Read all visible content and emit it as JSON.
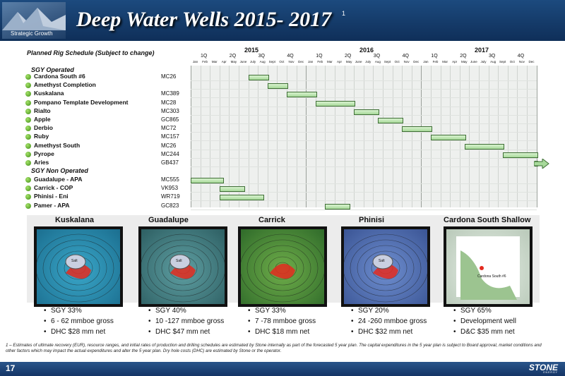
{
  "header": {
    "title": "Deep Water Wells 2015- 2017",
    "title_sup": "1",
    "logo_text": "Strategic Growth"
  },
  "schedule": {
    "title": "Planned Rig Schedule (Subject to change)",
    "years": [
      "2015",
      "2016",
      "2017"
    ],
    "quarters": [
      "1Q",
      "2Q",
      "3Q",
      "4Q",
      "1Q",
      "2Q",
      "3Q",
      "4Q",
      "1Q",
      "2Q",
      "3Q",
      "4Q"
    ],
    "months": [
      "Jan",
      "Feb",
      "Mar",
      "Apr",
      "May",
      "June",
      "July",
      "Aug",
      "Sept",
      "Oct",
      "Nov",
      "Dec",
      "Jan",
      "Feb",
      "Mar",
      "Apr",
      "May",
      "June",
      "July",
      "Aug",
      "Sept",
      "Oct",
      "Nov",
      "Dec",
      "Jan",
      "Feb",
      "Mar",
      "Apr",
      "May",
      "June",
      "July",
      "Aug",
      "Sept",
      "Oct",
      "Nov",
      "Dec"
    ],
    "operated_label": "SGY Operated",
    "non_operated_label": "SGY Non Operated",
    "operated": [
      {
        "name": "Cardona South #6",
        "block": "MC26",
        "start": 6,
        "end": 8
      },
      {
        "name": "Amethyst Completion",
        "block": "",
        "start": 8,
        "end": 10
      },
      {
        "name": "Kuskalana",
        "block": "MC389",
        "start": 10,
        "end": 13
      },
      {
        "name": "Pompano Template Development",
        "block": "MC28",
        "start": 13,
        "end": 17
      },
      {
        "name": "Rialto",
        "block": "MC303",
        "start": 17,
        "end": 19.5
      },
      {
        "name": "Apple",
        "block": "GC865",
        "start": 19.5,
        "end": 22
      },
      {
        "name": "Derbio",
        "block": "MC72",
        "start": 22,
        "end": 25
      },
      {
        "name": "Ruby",
        "block": "MC157",
        "start": 25,
        "end": 28.5
      },
      {
        "name": "Amethyst South",
        "block": "MC26",
        "start": 28.5,
        "end": 32.5
      },
      {
        "name": "Pyrope",
        "block": "MC244",
        "start": 32.5,
        "end": 36
      },
      {
        "name": "Aries",
        "block": "GB437",
        "start": 35.8,
        "end": 37.3
      }
    ],
    "non_operated": [
      {
        "name": "Guadalupe - APA",
        "block": "MC555",
        "start": 0,
        "end": 3.3
      },
      {
        "name": "Carrick - COP",
        "block": "VK953",
        "start": 3,
        "end": 5.5
      },
      {
        "name": "Phinisi - Eni",
        "block": "WR719",
        "start": 3,
        "end": 7.5
      },
      {
        "name": "Pamer - APA",
        "block": "GC823",
        "start": 14,
        "end": 16.5
      }
    ]
  },
  "prospects": [
    {
      "name": "Kuskalana",
      "bullets": [
        "SGY 33%",
        "6 - 62 mmboe gross",
        "DHC $28 mm net"
      ],
      "label": "Salt"
    },
    {
      "name": "Guadalupe",
      "bullets": [
        "SGY 40%",
        "10 -127 mmboe gross",
        "DHC $47 mm net"
      ],
      "label": "Salt"
    },
    {
      "name": "Carrick",
      "bullets": [
        "SGY 33%",
        "7 -78 mmboe gross",
        "DHC $18 mm net"
      ],
      "label": ""
    },
    {
      "name": "Phinisi",
      "bullets": [
        "SGY 20%",
        "24 -260 mmboe gross",
        "DHC $32 mm net"
      ],
      "label": "Salt"
    },
    {
      "name": "Cardona South Shallow",
      "bullets": [
        "SGY  65%",
        "Development well",
        "D&C  $35 mm net"
      ],
      "label": "Cardona South #6"
    }
  ],
  "footnote": "1 – Estimates of ultimate recovery (EUR), resource ranges, and initial rates of production and drilling schedules are estimated by Stone internally as part of the forecasted 5 year plan. The capital expenditures in the 5 year plan is subject to Board approval, market conditions and other factors which may impact the actual expenditures and alter the 5 year plan. Dry hole costs (DHC) are estimated by Stone or the operator.",
  "footer": {
    "page": "17",
    "brand": "STONE",
    "brand_sub": "ENERGY"
  },
  "colors": {
    "header": "#1c4a7e",
    "bar_fill": "#a7d99a",
    "bar_border": "#3e6e35",
    "dot": "#3d8b15"
  }
}
